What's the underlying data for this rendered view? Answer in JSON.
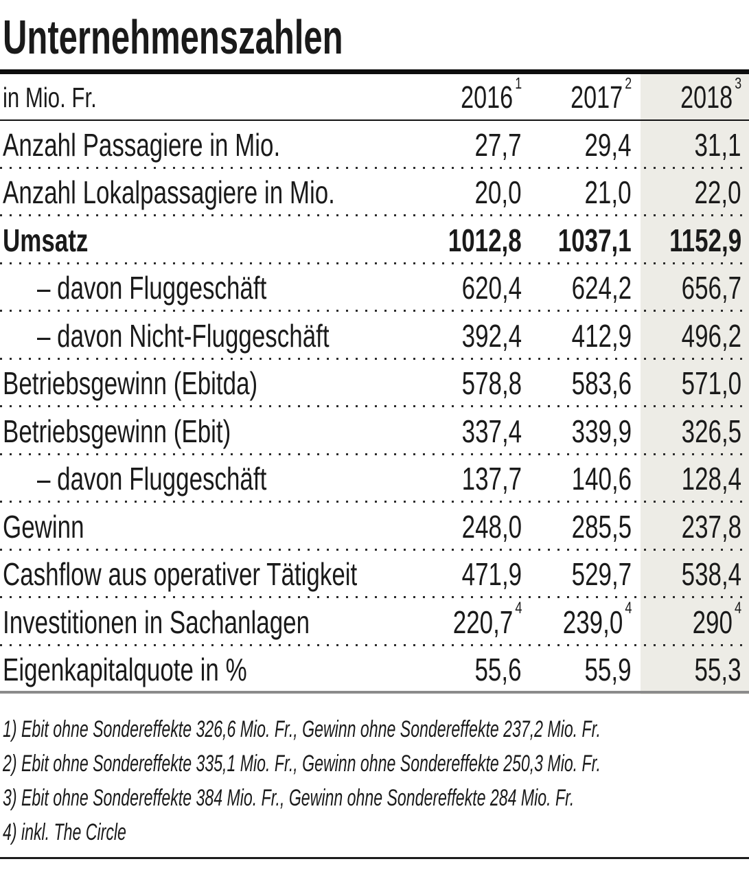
{
  "title": "Unternehmenszahlen",
  "colors": {
    "highlight_column_2018": "#edece6",
    "text": "#1a1a1a",
    "thick_rule": "#0d0d0d",
    "gray_rule": "#8b8b8b"
  },
  "table": {
    "unit_label": "in Mio. Fr.",
    "columns": [
      {
        "year": "2016",
        "footnote_mark": "1"
      },
      {
        "year": "2017",
        "footnote_mark": "2"
      },
      {
        "year": "2018",
        "footnote_mark": "3"
      }
    ],
    "rows": [
      {
        "label": "Anzahl Passagiere in Mio.",
        "cells": [
          {
            "value": "27,7",
            "sup": ""
          },
          {
            "value": "29,4",
            "sup": ""
          },
          {
            "value": "31,1",
            "sup": ""
          }
        ]
      },
      {
        "label": "Anzahl Lokalpassagiere in Mio.",
        "cells": [
          {
            "value": "20,0",
            "sup": ""
          },
          {
            "value": "21,0",
            "sup": ""
          },
          {
            "value": "22,0",
            "sup": ""
          }
        ]
      },
      {
        "label": "Umsatz",
        "cells": [
          {
            "value": "1012,8",
            "sup": ""
          },
          {
            "value": "1037,1",
            "sup": ""
          },
          {
            "value": "1152,9",
            "sup": ""
          }
        ]
      },
      {
        "label": "– davon Fluggeschäft",
        "cells": [
          {
            "value": "620,4",
            "sup": ""
          },
          {
            "value": "624,2",
            "sup": ""
          },
          {
            "value": "656,7",
            "sup": ""
          }
        ]
      },
      {
        "label": "– davon Nicht-Fluggeschäft",
        "cells": [
          {
            "value": "392,4",
            "sup": ""
          },
          {
            "value": "412,9",
            "sup": ""
          },
          {
            "value": "496,2",
            "sup": ""
          }
        ]
      },
      {
        "label": "Betriebsgewinn (Ebitda)",
        "cells": [
          {
            "value": "578,8",
            "sup": ""
          },
          {
            "value": "583,6",
            "sup": ""
          },
          {
            "value": "571,0",
            "sup": ""
          }
        ]
      },
      {
        "label": "Betriebsgewinn (Ebit)",
        "cells": [
          {
            "value": "337,4",
            "sup": ""
          },
          {
            "value": "339,9",
            "sup": ""
          },
          {
            "value": "326,5",
            "sup": ""
          }
        ]
      },
      {
        "label": "– davon Fluggeschäft",
        "cells": [
          {
            "value": "137,7",
            "sup": ""
          },
          {
            "value": "140,6",
            "sup": ""
          },
          {
            "value": "128,4",
            "sup": ""
          }
        ]
      },
      {
        "label": "Gewinn",
        "cells": [
          {
            "value": "248,0",
            "sup": ""
          },
          {
            "value": "285,5",
            "sup": ""
          },
          {
            "value": "237,8",
            "sup": ""
          }
        ]
      },
      {
        "label": "Cashflow aus operativer Tätigkeit",
        "cells": [
          {
            "value": "471,9",
            "sup": ""
          },
          {
            "value": "529,7",
            "sup": ""
          },
          {
            "value": "538,4",
            "sup": ""
          }
        ]
      },
      {
        "label": "Investitionen in Sachanlagen",
        "cells": [
          {
            "value": "220,7",
            "sup": "4"
          },
          {
            "value": "239,0",
            "sup": "4"
          },
          {
            "value": "290",
            "sup": "4"
          }
        ]
      },
      {
        "label": "Eigenkapitalquote in %",
        "cells": [
          {
            "value": "55,6",
            "sup": ""
          },
          {
            "value": "55,9",
            "sup": ""
          },
          {
            "value": "55,3",
            "sup": ""
          }
        ]
      }
    ]
  },
  "footnotes": [
    "1) Ebit ohne Sondereffekte 326,6 Mio. Fr., Gewinn ohne Sondereffekte 237,2 Mio. Fr.",
    "2) Ebit ohne Sondereffekte 335,1 Mio. Fr., Gewinn ohne Sondereffekte 250,3 Mio. Fr.",
    "3) Ebit ohne Sondereffekte 384 Mio. Fr., Gewinn ohne Sondereffekte 284 Mio. Fr.",
    "4) inkl. The Circle"
  ],
  "chart_data": {
    "type": "table",
    "title": "Unternehmenszahlen",
    "unit": "in Mio. Fr.",
    "categories": [
      "2016",
      "2017",
      "2018"
    ],
    "column_footnotes": [
      "1",
      "2",
      "3"
    ],
    "highlighted_column": "2018",
    "series": [
      {
        "name": "Anzahl Passagiere in Mio.",
        "values": [
          27.7,
          29.4,
          31.1
        ]
      },
      {
        "name": "Anzahl Lokalpassagiere in Mio.",
        "values": [
          20.0,
          21.0,
          22.0
        ]
      },
      {
        "name": "Umsatz",
        "values": [
          1012.8,
          1037.1,
          1152.9
        ],
        "bold": true
      },
      {
        "name": "– davon Fluggeschäft",
        "values": [
          620.4,
          624.2,
          656.7
        ]
      },
      {
        "name": "– davon Nicht-Fluggeschäft",
        "values": [
          392.4,
          412.9,
          496.2
        ]
      },
      {
        "name": "Betriebsgewinn (Ebitda)",
        "values": [
          578.8,
          583.6,
          571.0
        ]
      },
      {
        "name": "Betriebsgewinn (Ebit)",
        "values": [
          337.4,
          339.9,
          326.5
        ]
      },
      {
        "name": "– davon Fluggeschäft",
        "values": [
          137.7,
          140.6,
          128.4
        ]
      },
      {
        "name": "Gewinn",
        "values": [
          248.0,
          285.5,
          237.8
        ]
      },
      {
        "name": "Cashflow aus operativer Tätigkeit",
        "values": [
          471.9,
          529.7,
          538.4
        ]
      },
      {
        "name": "Investitionen in Sachanlagen",
        "values": [
          220.7,
          239.0,
          290
        ],
        "value_footnote": "4"
      },
      {
        "name": "Eigenkapitalquote in %",
        "values": [
          55.6,
          55.9,
          55.3
        ]
      }
    ],
    "footnotes": [
      "1) Ebit ohne Sondereffekte 326,6 Mio. Fr., Gewinn ohne Sondereffekte 237,2 Mio. Fr.",
      "2) Ebit ohne Sondereffekte 335,1 Mio. Fr., Gewinn ohne Sondereffekte 250,3 Mio. Fr.",
      "3) Ebit ohne Sondereffekte 384 Mio. Fr., Gewinn ohne Sondereffekte 284 Mio. Fr.",
      "4) inkl. The Circle"
    ]
  }
}
